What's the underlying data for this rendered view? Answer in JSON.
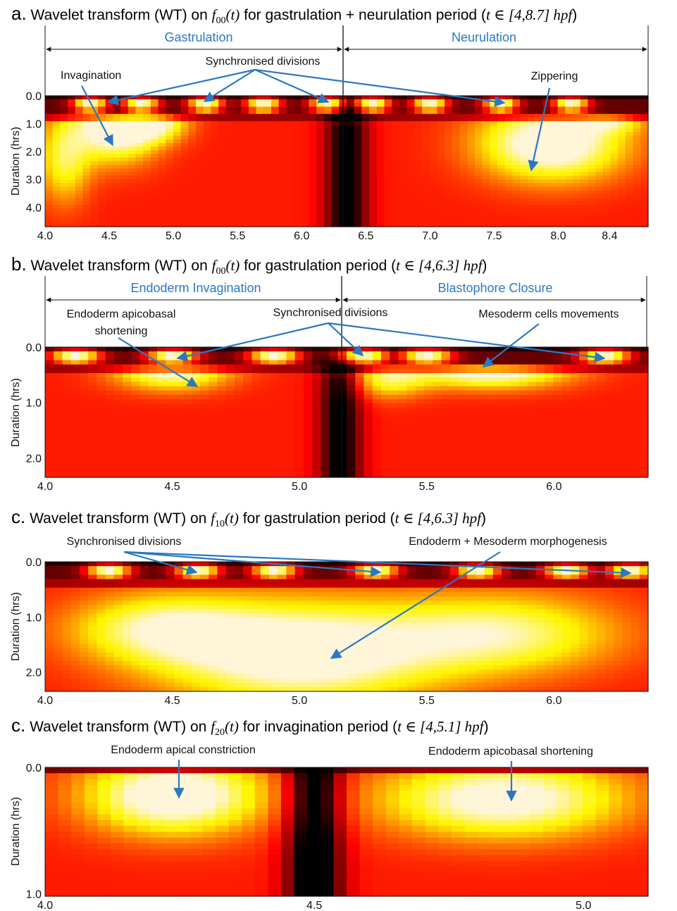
{
  "panels": [
    {
      "id": "a",
      "letter": "a.",
      "title_pre": "Wavelet transform (WT) on ",
      "func": "f",
      "func_sub": "00",
      "func_arg": "(t)",
      "title_mid": " for gastrulation + neurulation period (",
      "title_range": "t ∈ [4,8.7] hpf",
      "title_post": ")",
      "phases": [
        "Gastrulation",
        "Neurulation"
      ],
      "annotations": [
        "Invagination",
        "Synchronised divisions",
        "Zippering"
      ],
      "ylabel": "Duration (hrs)",
      "xticks": [
        "4.0",
        "4.5",
        "5.0",
        "5.5",
        "6.0",
        "6.5",
        "7.0",
        "7.5",
        "8.0",
        "8.4"
      ],
      "yticks": [
        "0.0",
        "1.0",
        "2.0",
        "3.0",
        "4.0"
      ]
    },
    {
      "id": "b",
      "letter": "b.",
      "title_pre": "Wavelet transform (WT) on ",
      "func": "f",
      "func_sub": "00",
      "func_arg": "(t)",
      "title_mid": " for gastrulation period (",
      "title_range": "t ∈ [4,6.3] hpf",
      "title_post": ")",
      "phases": [
        "Endoderm Invagination",
        "Blastophore Closure"
      ],
      "annotations": [
        "Endoderm apicobasal",
        "shortening",
        "Synchronised divisions",
        "Mesoderm cells movements"
      ],
      "ylabel": "Duration (hrs)",
      "xticks": [
        "4.0",
        "4.5",
        "5.0",
        "5.5",
        "6.0"
      ],
      "yticks": [
        "0.0",
        "1.0",
        "2.0"
      ]
    },
    {
      "id": "c",
      "letter": "c.",
      "title_pre": "Wavelet transform (WT) on ",
      "func": "f",
      "func_sub": "10",
      "func_arg": "(t)",
      "title_mid": " for gastrulation period (",
      "title_range": "t ∈ [4,6.3] hpf",
      "title_post": ")",
      "phases": [],
      "annotations": [
        "Synchronised divisions",
        "Endoderm + Mesoderm morphogenesis"
      ],
      "ylabel": "Duration (hrs)",
      "xticks": [
        "4.0",
        "4.5",
        "5.0",
        "5.5",
        "6.0"
      ],
      "yticks": [
        "0.0",
        "1.0",
        "2.0"
      ]
    },
    {
      "id": "d",
      "letter": "c.",
      "title_pre": "Wavelet transform (WT) on ",
      "func": "f",
      "func_sub": "20",
      "func_arg": "(t)",
      "title_mid": " for invagination period (",
      "title_range": "t ∈ [4,5.1] hpf",
      "title_post": ")",
      "phases": [],
      "annotations": [
        "Endoderm apical constriction",
        "Endoderm apicobasal shortening"
      ],
      "ylabel": "Duration (hrs)",
      "xticks": [
        "4.0",
        "4.5",
        "5.0"
      ],
      "yticks": [
        "0.0",
        "1.0"
      ]
    }
  ],
  "colors": {
    "accent": "#2a78c2",
    "arrow": "#2a78c2",
    "hot_low": "#000000",
    "hot_mid": "#e00000",
    "hot_high": "#ffff60"
  },
  "chart_data": [
    {
      "type": "heatmap",
      "colormap": "hot",
      "title": "Wavelet transform (WT) on f00(t) for gastrulation + neurulation period (t ∈ [4,8.7] hpf)",
      "xlabel": "",
      "ylabel": "Duration (hrs)",
      "xlim": [
        4.0,
        8.7
      ],
      "ylim": [
        0.0,
        4.7
      ],
      "y_inverted": true,
      "xticks": [
        4.0,
        4.5,
        5.0,
        5.5,
        6.0,
        6.5,
        7.0,
        7.5,
        8.0,
        8.4
      ],
      "yticks": [
        0.0,
        1.0,
        2.0,
        3.0,
        4.0
      ],
      "divider_x": 6.35,
      "phases": [
        {
          "name": "Gastrulation",
          "range": [
            4.0,
            6.35
          ]
        },
        {
          "name": "Neurulation",
          "range": [
            6.35,
            8.7
          ]
        }
      ],
      "annotations": [
        {
          "text": "Invagination",
          "target": [
            [
              4.5,
              1.7
            ]
          ]
        },
        {
          "text": "Synchronised divisions",
          "target": [
            [
              4.35,
              0.2
            ],
            [
              5.25,
              0.15
            ],
            [
              6.2,
              0.2
            ],
            [
              7.6,
              0.2
            ]
          ]
        },
        {
          "text": "Zippering",
          "target": [
            [
              7.85,
              2.7
            ]
          ]
        }
      ],
      "hotspots": [
        {
          "x": 4.55,
          "y": 1.1,
          "sx": 0.32,
          "sy": 1.2,
          "v": 1.0
        },
        {
          "x": 4.85,
          "y": 0.9,
          "sx": 0.25,
          "sy": 0.7,
          "v": 0.7
        },
        {
          "x": 7.95,
          "y": 1.7,
          "sx": 0.55,
          "sy": 1.3,
          "v": 1.0
        },
        {
          "x": 8.4,
          "y": 0.8,
          "sx": 0.25,
          "sy": 0.5,
          "v": 0.5
        },
        {
          "x": 4.15,
          "y": 2.3,
          "sx": 0.2,
          "sy": 1.5,
          "v": 0.55
        }
      ],
      "ridges": [
        4.35,
        4.75,
        5.25,
        5.7,
        6.2,
        6.55,
        7.0,
        7.55,
        8.1
      ]
    },
    {
      "type": "heatmap",
      "colormap": "hot",
      "title": "Wavelet transform (WT) on f00(t) for gastrulation period (t ∈ [4,6.3] hpf)",
      "xlabel": "",
      "ylabel": "Duration (hrs)",
      "xlim": [
        4.0,
        6.37
      ],
      "ylim": [
        0.0,
        2.35
      ],
      "y_inverted": true,
      "xticks": [
        4.0,
        4.5,
        5.0,
        5.5,
        6.0
      ],
      "yticks": [
        0.0,
        1.0,
        2.0
      ],
      "divider_x": 5.16,
      "phases": [
        {
          "name": "Endoderm Invagination",
          "range": [
            4.0,
            5.16
          ]
        },
        {
          "name": "Blastophore Closure",
          "range": [
            5.16,
            6.37
          ]
        }
      ],
      "annotations": [
        {
          "text": "Endoderm apicobasal shortening",
          "target": [
            [
              4.58,
              0.7
            ]
          ]
        },
        {
          "text": "Synchronised divisions",
          "target": [
            [
              4.52,
              0.18
            ],
            [
              5.25,
              0.12
            ],
            [
              6.2,
              0.18
            ]
          ]
        },
        {
          "text": "Mesoderm cells movements",
          "target": [
            [
              5.72,
              0.32
            ]
          ]
        }
      ],
      "hotspots": [
        {
          "x": 4.5,
          "y": 0.4,
          "sx": 0.22,
          "sy": 0.35,
          "v": 0.85
        },
        {
          "x": 5.75,
          "y": 0.38,
          "sx": 0.3,
          "sy": 0.33,
          "v": 1.0
        },
        {
          "x": 5.35,
          "y": 0.55,
          "sx": 0.15,
          "sy": 0.35,
          "v": 0.55
        }
      ],
      "ridges": [
        4.12,
        4.5,
        4.9,
        5.25,
        5.5,
        6.2
      ]
    },
    {
      "type": "heatmap",
      "colormap": "hot",
      "title": "Wavelet transform (WT) on f10(t) for gastrulation period (t ∈ [4,6.3] hpf)",
      "xlabel": "",
      "ylabel": "Duration (hrs)",
      "xlim": [
        4.0,
        6.37
      ],
      "ylim": [
        0.0,
        2.35
      ],
      "y_inverted": true,
      "xticks": [
        4.0,
        4.5,
        5.0,
        5.5,
        6.0
      ],
      "yticks": [
        0.0,
        1.0,
        2.0
      ],
      "annotations": [
        {
          "text": "Synchronised divisions",
          "target": [
            [
              4.58,
              0.18
            ],
            [
              5.32,
              0.2
            ],
            [
              6.28,
              0.2
            ]
          ]
        },
        {
          "text": "Endoderm + Mesoderm morphogenesis",
          "target": [
            [
              5.12,
              1.75
            ]
          ]
        }
      ],
      "hotspots": [
        {
          "x": 5.0,
          "y": 1.65,
          "sx": 0.55,
          "sy": 0.9,
          "v": 1.0
        },
        {
          "x": 4.45,
          "y": 1.2,
          "sx": 0.35,
          "sy": 0.6,
          "v": 0.6
        },
        {
          "x": 5.8,
          "y": 1.3,
          "sx": 0.45,
          "sy": 0.7,
          "v": 0.65
        }
      ],
      "ridges": [
        4.25,
        4.6,
        4.9,
        5.3,
        5.7,
        6.05,
        6.3
      ]
    },
    {
      "type": "heatmap",
      "colormap": "hot",
      "title": "Wavelet transform (WT) on f20(t) for invagination period (t ∈ [4,5.1] hpf)",
      "xlabel": "",
      "ylabel": "Duration (hrs)",
      "xlim": [
        4.0,
        5.12
      ],
      "ylim": [
        0.0,
        1.02
      ],
      "y_inverted": true,
      "xticks": [
        4.0,
        4.5,
        5.0
      ],
      "yticks": [
        0.0,
        1.0
      ],
      "annotations": [
        {
          "text": "Endoderm apical constriction",
          "target": [
            [
              4.25,
              0.22
            ]
          ]
        },
        {
          "text": "Endoderm apicobasal shortening",
          "target": [
            [
              4.87,
              0.25
            ]
          ]
        }
      ],
      "hotspots": [
        {
          "x": 4.24,
          "y": 0.22,
          "sx": 0.16,
          "sy": 0.3,
          "v": 1.0
        },
        {
          "x": 4.85,
          "y": 0.25,
          "sx": 0.22,
          "sy": 0.3,
          "v": 0.9
        }
      ],
      "ridges": [],
      "dark_band_x": 4.5
    }
  ]
}
